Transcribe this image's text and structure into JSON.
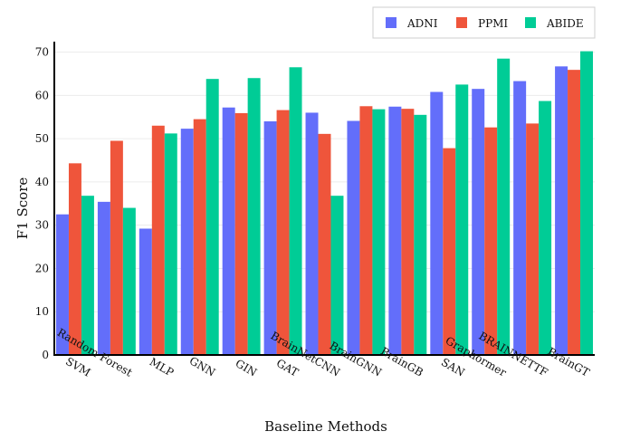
{
  "chart_data": {
    "type": "bar",
    "title": "",
    "xlabel": "Baseline Methods",
    "ylabel": "F1 Score",
    "ylim": [
      0,
      72
    ],
    "yticks": [
      0,
      10,
      20,
      30,
      40,
      50,
      60,
      70
    ],
    "grid": "horizontal",
    "legend_position": "top-right",
    "categories": [
      "SVM",
      "Random Forest",
      "MLP",
      "GNN",
      "GIN",
      "GAT",
      "BrainNetCNN",
      "BrainGNN",
      "BrainGB",
      "SAN",
      "Graphormer",
      "BRAINNETTF",
      "BrainGT"
    ],
    "series": [
      {
        "name": "ADNI",
        "color": "#636efa",
        "values": [
          32.5,
          35.4,
          29.2,
          52.3,
          57.2,
          54.0,
          56.0,
          54.1,
          57.4,
          60.8,
          61.5,
          63.3,
          66.7
        ]
      },
      {
        "name": "PPMI",
        "color": "#ef553b",
        "values": [
          44.3,
          49.5,
          53.0,
          54.5,
          55.9,
          56.6,
          51.1,
          57.5,
          56.9,
          47.8,
          52.6,
          53.5,
          65.9
        ]
      },
      {
        "name": "ABIDE",
        "color": "#00cc96",
        "values": [
          36.8,
          34.0,
          51.2,
          63.8,
          64.0,
          66.5,
          36.8,
          56.8,
          55.5,
          62.5,
          68.5,
          58.7,
          70.2
        ]
      }
    ]
  }
}
